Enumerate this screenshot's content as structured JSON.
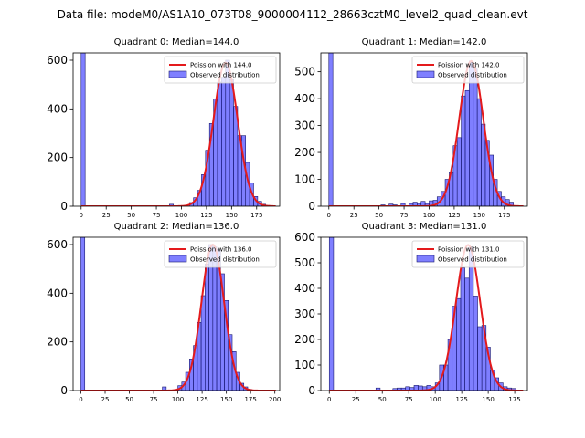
{
  "figure": {
    "title": "Data file: modeM0/AS1A10_073T08_9000004112_28663cztM0_level2_quad_clean.evt"
  },
  "chart_data": [
    {
      "type": "bar",
      "title": "Quadrant 0: Median=144.0",
      "legend": {
        "line": "Poission with 144.0",
        "bars": "Observed distribution",
        "placement": "upper right"
      },
      "xlim": [
        -8,
        198
      ],
      "ylim": [
        0,
        630
      ],
      "xticks": [
        0,
        25,
        50,
        75,
        100,
        125,
        150,
        175
      ],
      "yticks": [
        0,
        200,
        400,
        600
      ],
      "bin_width": 4,
      "bin_starts": [
        0,
        88,
        108,
        112,
        116,
        120,
        124,
        128,
        132,
        136,
        140,
        144,
        148,
        152,
        156,
        160,
        164,
        168,
        172,
        176,
        180,
        184
      ],
      "bin_counts": [
        630,
        8,
        15,
        35,
        65,
        130,
        230,
        340,
        440,
        510,
        530,
        600,
        520,
        410,
        290,
        290,
        180,
        95,
        40,
        20,
        8,
        3
      ],
      "poisson_mean": 144.0,
      "poisson_peak": 590
    },
    {
      "type": "bar",
      "title": "Quadrant 1: Median=142.0",
      "legend": {
        "line": "Poission with 142.0",
        "bars": "Observed distribution",
        "placement": "upper right"
      },
      "xlim": [
        -8,
        198
      ],
      "ylim": [
        0,
        570
      ],
      "xticks": [
        0,
        25,
        50,
        75,
        100,
        125,
        150,
        175
      ],
      "yticks": [
        0,
        100,
        200,
        300,
        400,
        500
      ],
      "bin_width": 4,
      "bin_starts": [
        0,
        52,
        60,
        64,
        72,
        80,
        84,
        88,
        92,
        96,
        100,
        104,
        108,
        112,
        116,
        120,
        124,
        128,
        132,
        136,
        140,
        144,
        148,
        152,
        156,
        160,
        164,
        168,
        172,
        176,
        180
      ],
      "bin_counts": [
        570,
        5,
        8,
        5,
        10,
        10,
        15,
        10,
        18,
        10,
        20,
        22,
        35,
        55,
        100,
        125,
        225,
        255,
        410,
        430,
        540,
        510,
        400,
        305,
        245,
        190,
        100,
        55,
        35,
        25,
        15
      ],
      "poisson_mean": 142.0,
      "poisson_peak": 540
    },
    {
      "type": "bar",
      "title": "Quadrant 2: Median=136.0",
      "legend": {
        "line": "Poission with 136.0",
        "bars": "Observed distribution",
        "placement": "upper right"
      },
      "xlim": [
        -8,
        205
      ],
      "ylim": [
        0,
        630
      ],
      "xticks": [
        0,
        25,
        50,
        75,
        100,
        125,
        150,
        175,
        200
      ],
      "yticks": [
        0,
        200,
        400,
        600
      ],
      "bin_width": 4,
      "bin_starts": [
        0,
        84,
        100,
        104,
        108,
        112,
        116,
        120,
        124,
        128,
        132,
        136,
        140,
        144,
        148,
        152,
        156,
        160,
        164,
        168,
        172
      ],
      "bin_counts": [
        630,
        15,
        20,
        35,
        75,
        130,
        185,
        280,
        390,
        520,
        600,
        590,
        580,
        480,
        370,
        230,
        160,
        75,
        30,
        15,
        5
      ],
      "poisson_mean": 136.0,
      "poisson_peak": 600
    },
    {
      "type": "bar",
      "title": "Quadrant 3: Median=131.0",
      "legend": {
        "line": "Poission with 131.0",
        "bars": "Observed distribution",
        "placement": "upper right"
      },
      "xlim": [
        -8,
        187
      ],
      "ylim": [
        0,
        600
      ],
      "xticks": [
        0,
        25,
        50,
        75,
        100,
        125,
        150,
        175
      ],
      "yticks": [
        0,
        100,
        200,
        300,
        400,
        500,
        600
      ],
      "bin_width": 4,
      "bin_starts": [
        0,
        44,
        60,
        64,
        68,
        72,
        76,
        80,
        84,
        88,
        92,
        96,
        100,
        104,
        108,
        112,
        116,
        120,
        124,
        128,
        132,
        136,
        140,
        144,
        148,
        152,
        156,
        160,
        164,
        168,
        172
      ],
      "bin_counts": [
        600,
        10,
        8,
        10,
        10,
        15,
        12,
        20,
        18,
        15,
        20,
        15,
        30,
        100,
        100,
        200,
        330,
        360,
        480,
        440,
        560,
        370,
        250,
        255,
        170,
        80,
        50,
        30,
        15,
        10,
        8
      ],
      "poisson_mean": 131.0,
      "poisson_peak": 570
    }
  ]
}
